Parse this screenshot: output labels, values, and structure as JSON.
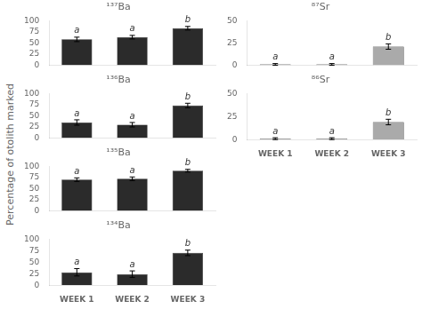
{
  "ylabel": "Percentage of otolith marked",
  "chart_data": [
    {
      "type": "bar",
      "title": "¹³⁷Ba",
      "categories": [
        "WEEK 1",
        "WEEK 2",
        "WEEK 3"
      ],
      "values": [
        58,
        63,
        83
      ],
      "errors": [
        5,
        4,
        4
      ],
      "annotations": [
        "a",
        "a",
        "b"
      ],
      "color": "#2b2b2b",
      "ylim": [
        0,
        100
      ],
      "yticks": [
        0,
        25,
        50,
        75,
        100
      ],
      "grid": false,
      "tick_labels": "y"
    },
    {
      "type": "bar",
      "title": "⁸⁷Sr",
      "categories": [
        "WEEK 1",
        "WEEK 2",
        "WEEK 3"
      ],
      "values": [
        1,
        1,
        21
      ],
      "errors": [
        1,
        1,
        3
      ],
      "annotations": [
        "a",
        "a",
        "b"
      ],
      "color": "#aaaaaa",
      "ylim": [
        0,
        50
      ],
      "yticks": [
        0,
        25,
        50
      ],
      "grid": false,
      "tick_labels": "y"
    },
    {
      "type": "bar",
      "title": "¹³⁶Ba",
      "categories": [
        "WEEK 1",
        "WEEK 2",
        "WEEK 3"
      ],
      "values": [
        35,
        30,
        73
      ],
      "errors": [
        6,
        5,
        5
      ],
      "annotations": [
        "a",
        "a",
        "b"
      ],
      "color": "#2b2b2b",
      "ylim": [
        0,
        100
      ],
      "yticks": [
        0,
        25,
        50,
        75,
        100
      ],
      "grid": false,
      "tick_labels": "y"
    },
    {
      "type": "bar",
      "title": "⁸⁶Sr",
      "categories": [
        "WEEK 1",
        "WEEK 2",
        "WEEK 3"
      ],
      "values": [
        1,
        1,
        19
      ],
      "errors": [
        1,
        1,
        3
      ],
      "annotations": [
        "a",
        "a",
        "b"
      ],
      "color": "#aaaaaa",
      "ylim": [
        0,
        50
      ],
      "yticks": [
        0,
        25,
        50
      ],
      "grid": false
    },
    {
      "type": "bar",
      "title": "¹³⁵Ba",
      "categories": [
        "WEEK 1",
        "WEEK 2",
        "WEEK 3"
      ],
      "values": [
        70,
        72,
        90
      ],
      "errors": [
        4,
        4,
        3
      ],
      "annotations": [
        "a",
        "a",
        "b"
      ],
      "color": "#2b2b2b",
      "ylim": [
        0,
        100
      ],
      "yticks": [
        0,
        25,
        50,
        75,
        100
      ],
      "grid": false,
      "tick_labels": "y"
    },
    {
      "type": "bar",
      "title": "¹³⁴Ba",
      "categories": [
        "WEEK 1",
        "WEEK 2",
        "WEEK 3"
      ],
      "values": [
        28,
        24,
        70
      ],
      "errors": [
        8,
        7,
        6
      ],
      "annotations": [
        "a",
        "a",
        "b"
      ],
      "color": "#2b2b2b",
      "ylim": [
        0,
        100
      ],
      "yticks": [
        0,
        25,
        50,
        75,
        100
      ],
      "grid": false
    }
  ]
}
